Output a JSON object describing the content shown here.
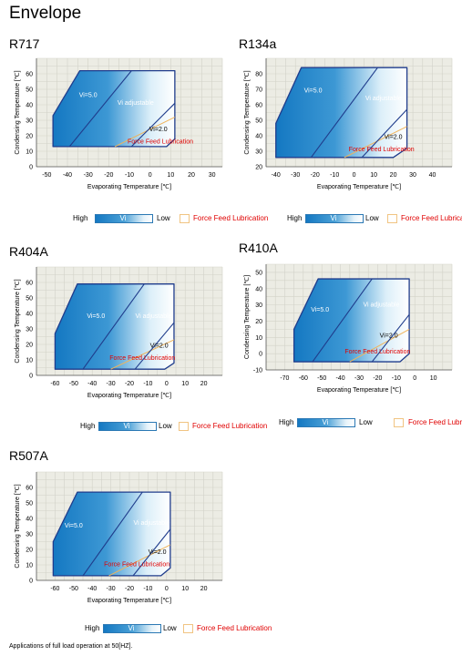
{
  "page_title": "Envelope",
  "legend": {
    "high": "High",
    "vi": "Vi",
    "low": "Low",
    "ffl": "Force Feed Lubrication"
  },
  "footnote": "Applications of full load operation at 50[HZ].",
  "colors": {
    "grad_dark": "#1478c2",
    "grad_light": "#ffffff",
    "outline": "#1f3c8c",
    "ffl_line": "#f0b45a",
    "ffl_text": "#e00000",
    "plot_bg": "#ecece4"
  },
  "chart_data": [
    {
      "type": "area",
      "title": "R717",
      "xlabel": "Evaporating Temperature [℃]",
      "ylabel": "Condensing Temperature [℃]",
      "xlim": [
        -55,
        35
      ],
      "ylim": [
        0,
        70
      ],
      "xticks": [
        -50,
        -40,
        -30,
        -20,
        -10,
        0,
        10,
        20,
        30
      ],
      "yticks": [
        0,
        10,
        20,
        30,
        40,
        50,
        60
      ],
      "envelope": [
        [
          -47,
          13
        ],
        [
          -47,
          33
        ],
        [
          -34,
          62
        ],
        [
          12,
          62
        ],
        [
          12,
          18
        ],
        [
          8,
          13
        ]
      ],
      "vi_divider": [
        [
          -39,
          13
        ],
        [
          -9,
          62
        ]
      ],
      "vi_low_line": [
        [
          -9,
          13
        ],
        [
          12,
          41
        ]
      ],
      "ffl_line": [
        [
          -17,
          13
        ],
        [
          12,
          32
        ]
      ],
      "labels": {
        "vi_fixed": "Vi=5.0",
        "vi_adj": "Vi adjustable",
        "vi_low": "Vi=2.0",
        "ffl": "Force Feed Lubrication"
      },
      "label_pos": {
        "vi_fixed": [
          -30,
          45
        ],
        "vi_adj": [
          -7,
          40
        ],
        "vi_low": [
          4,
          23
        ],
        "ffl": [
          5,
          15
        ]
      }
    },
    {
      "type": "area",
      "title": "R134a",
      "xlabel": "Evaporating Temperature [℃]",
      "ylabel": "Condensing Temperature [℃]",
      "xlim": [
        -45,
        50
      ],
      "ylim": [
        20,
        90
      ],
      "xticks": [
        -40,
        -30,
        -20,
        -10,
        0,
        10,
        20,
        30,
        40
      ],
      "yticks": [
        20,
        30,
        40,
        50,
        60,
        70,
        80
      ],
      "envelope": [
        [
          -40,
          26
        ],
        [
          -40,
          48
        ],
        [
          -27,
          84
        ],
        [
          27,
          84
        ],
        [
          27,
          32
        ],
        [
          20,
          26
        ]
      ],
      "vi_divider": [
        [
          -22,
          26
        ],
        [
          12,
          84
        ]
      ],
      "vi_low_line": [
        [
          4,
          26
        ],
        [
          27,
          57
        ]
      ],
      "ffl_line": [
        [
          -5,
          26
        ],
        [
          27,
          46
        ]
      ],
      "labels": {
        "vi_fixed": "Vi=5.0",
        "vi_adj": "Vi adjustable",
        "vi_low": "Vi=2.0",
        "ffl": "Force Feed Lubrication"
      },
      "label_pos": {
        "vi_fixed": [
          -21,
          68
        ],
        "vi_adj": [
          15,
          63
        ],
        "vi_low": [
          20,
          38
        ],
        "ffl": [
          14,
          30
        ]
      }
    },
    {
      "type": "area",
      "title": "R404A",
      "xlabel": "Evaporating Temperature [℃]",
      "ylabel": "Condensing Temperature [℃]",
      "xlim": [
        -70,
        30
      ],
      "ylim": [
        0,
        70
      ],
      "xticks": [
        -60,
        -50,
        -40,
        -30,
        -20,
        -10,
        0,
        10,
        20
      ],
      "yticks": [
        0,
        10,
        20,
        30,
        40,
        50,
        60
      ],
      "envelope": [
        [
          -60,
          4
        ],
        [
          -60,
          27
        ],
        [
          -48,
          59
        ],
        [
          4,
          59
        ],
        [
          4,
          8
        ],
        [
          -1,
          4
        ]
      ],
      "vi_divider": [
        [
          -45,
          4
        ],
        [
          -12,
          59
        ]
      ],
      "vi_low_line": [
        [
          -17,
          4
        ],
        [
          4,
          34
        ]
      ],
      "ffl_line": [
        [
          -30,
          4
        ],
        [
          4,
          23
        ]
      ],
      "labels": {
        "vi_fixed": "Vi=5.0",
        "vi_adj": "Vi adjustable",
        "vi_low": "Vi=2.0",
        "ffl": "Force Feed Lubrication"
      },
      "label_pos": {
        "vi_fixed": [
          -38,
          37
        ],
        "vi_adj": [
          -7,
          37
        ],
        "vi_low": [
          -4,
          18
        ],
        "ffl": [
          -13,
          10
        ]
      }
    },
    {
      "type": "area",
      "title": "R410A",
      "xlabel": "Evaporating Temperature [℃]",
      "ylabel": "Condensing Temperature [℃]",
      "xlim": [
        -80,
        20
      ],
      "ylim": [
        -10,
        55
      ],
      "xticks": [
        -70,
        -60,
        -50,
        -40,
        -30,
        -20,
        -10,
        0,
        10
      ],
      "yticks": [
        -10,
        0,
        10,
        20,
        30,
        40,
        50
      ],
      "envelope": [
        [
          -65,
          -5
        ],
        [
          -65,
          15
        ],
        [
          -52,
          46
        ],
        [
          -3,
          46
        ],
        [
          -3,
          0
        ],
        [
          -8,
          -5
        ]
      ],
      "vi_divider": [
        [
          -55,
          -5
        ],
        [
          -23,
          46
        ]
      ],
      "vi_low_line": [
        [
          -23,
          -5
        ],
        [
          -3,
          24
        ]
      ],
      "ffl_line": [
        [
          -35,
          -5
        ],
        [
          -3,
          15
        ]
      ],
      "labels": {
        "vi_fixed": "Vi=5.0",
        "vi_adj": "Vi adjustable",
        "vi_low": "Vi=2.0",
        "ffl": "Force Feed Lubrication"
      },
      "label_pos": {
        "vi_fixed": [
          -51,
          26
        ],
        "vi_adj": [
          -18,
          29
        ],
        "vi_low": [
          -14,
          10
        ],
        "ffl": [
          -20,
          0
        ]
      }
    },
    {
      "type": "area",
      "title": "R507A",
      "xlabel": "Evaporating Temperature [℃]",
      "ylabel": "Condensing Temperature [℃]",
      "xlim": [
        -70,
        30
      ],
      "ylim": [
        0,
        70
      ],
      "xticks": [
        -60,
        -50,
        -40,
        -30,
        -20,
        -10,
        0,
        10,
        20
      ],
      "yticks": [
        0,
        10,
        20,
        30,
        40,
        50,
        60
      ],
      "envelope": [
        [
          -61,
          3
        ],
        [
          -61,
          25
        ],
        [
          -48,
          57
        ],
        [
          2,
          57
        ],
        [
          2,
          8
        ],
        [
          -3,
          3
        ]
      ],
      "vi_divider": [
        [
          -45,
          3
        ],
        [
          -13,
          57
        ]
      ],
      "vi_low_line": [
        [
          -18,
          3
        ],
        [
          2,
          33
        ]
      ],
      "ffl_line": [
        [
          -31,
          3
        ],
        [
          2,
          23
        ]
      ],
      "labels": {
        "vi_fixed": "Vi=5.0",
        "vi_adj": "Vi adjustable",
        "vi_low": "Vi=2.0",
        "ffl": "Force Feed Lubrication"
      },
      "label_pos": {
        "vi_fixed": [
          -50,
          34
        ],
        "vi_adj": [
          -8,
          36
        ],
        "vi_low": [
          -5,
          17
        ],
        "ffl": [
          -16,
          9
        ]
      }
    }
  ]
}
